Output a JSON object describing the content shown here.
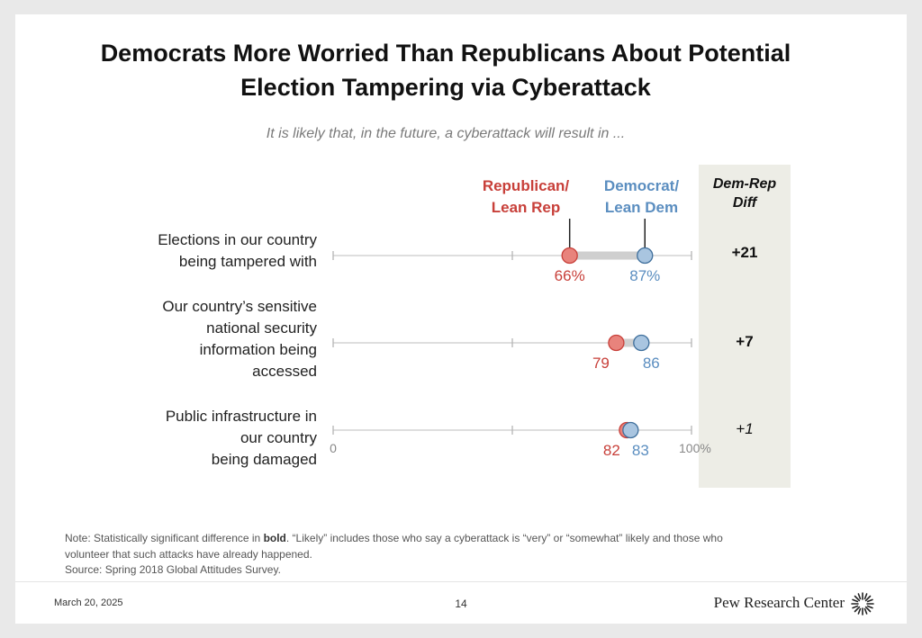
{
  "title_line1": "Democrats More Worried Than Republicans About Potential",
  "title_line2": "Election Tampering via Cyberattack",
  "subtitle": "It is likely that, in the future, a cyberattack will result in ...",
  "legend": {
    "rep_line1": "Republican/",
    "rep_line2": "Lean Rep",
    "dem_line1": "Democrat/",
    "dem_line2": "Lean Dem",
    "diff_line1": "Dem-Rep",
    "diff_line2": "Diff"
  },
  "colors": {
    "republican": "#e8837c",
    "republican_stroke": "#c8403a",
    "democrat": "#a9c5e0",
    "democrat_stroke": "#3f6f9c",
    "republican_text": "#c8403a",
    "democrat_text": "#5b8ec0",
    "gap_bar": "#cfcfcf",
    "diff_panel": "#edede6"
  },
  "chart_data": {
    "type": "dot",
    "title": "Democrats More Worried Than Republicans About Potential Election Tampering via Cyberattack",
    "xlim": [
      0,
      100
    ],
    "axis_min_label": "0",
    "axis_max_label": "100%",
    "series_names": [
      "Republican/Lean Rep",
      "Democrat/Lean Dem"
    ],
    "rows": [
      {
        "label_lines": [
          "Elections in our country",
          "being tampered with"
        ],
        "rep": 66,
        "dem": 87,
        "rep_label": "66%",
        "dem_label": "87%",
        "diff": "+21",
        "significant": true
      },
      {
        "label_lines": [
          "Our country’s sensitive",
          "national security",
          "information being",
          "accessed"
        ],
        "rep": 79,
        "dem": 86,
        "rep_label": "79",
        "dem_label": "86",
        "diff": "+7",
        "significant": true
      },
      {
        "label_lines": [
          "Public infrastructure in",
          "our country",
          "being damaged"
        ],
        "rep": 82,
        "dem": 83,
        "rep_label": "82",
        "dem_label": "83",
        "diff": "+1",
        "significant": false
      }
    ]
  },
  "note_prefix": "Note: Statistically significant difference in ",
  "note_bold": "bold",
  "note_suffix": ". “Likely” includes those who say a cyberattack is “very” or “somewhat” likely and those who volunteer that such attacks have already happened.",
  "source": "Source: Spring 2018 Global Attitudes Survey.",
  "footer": {
    "date": "March 20, 2025",
    "page": "14",
    "brand": "Pew Research Center"
  }
}
